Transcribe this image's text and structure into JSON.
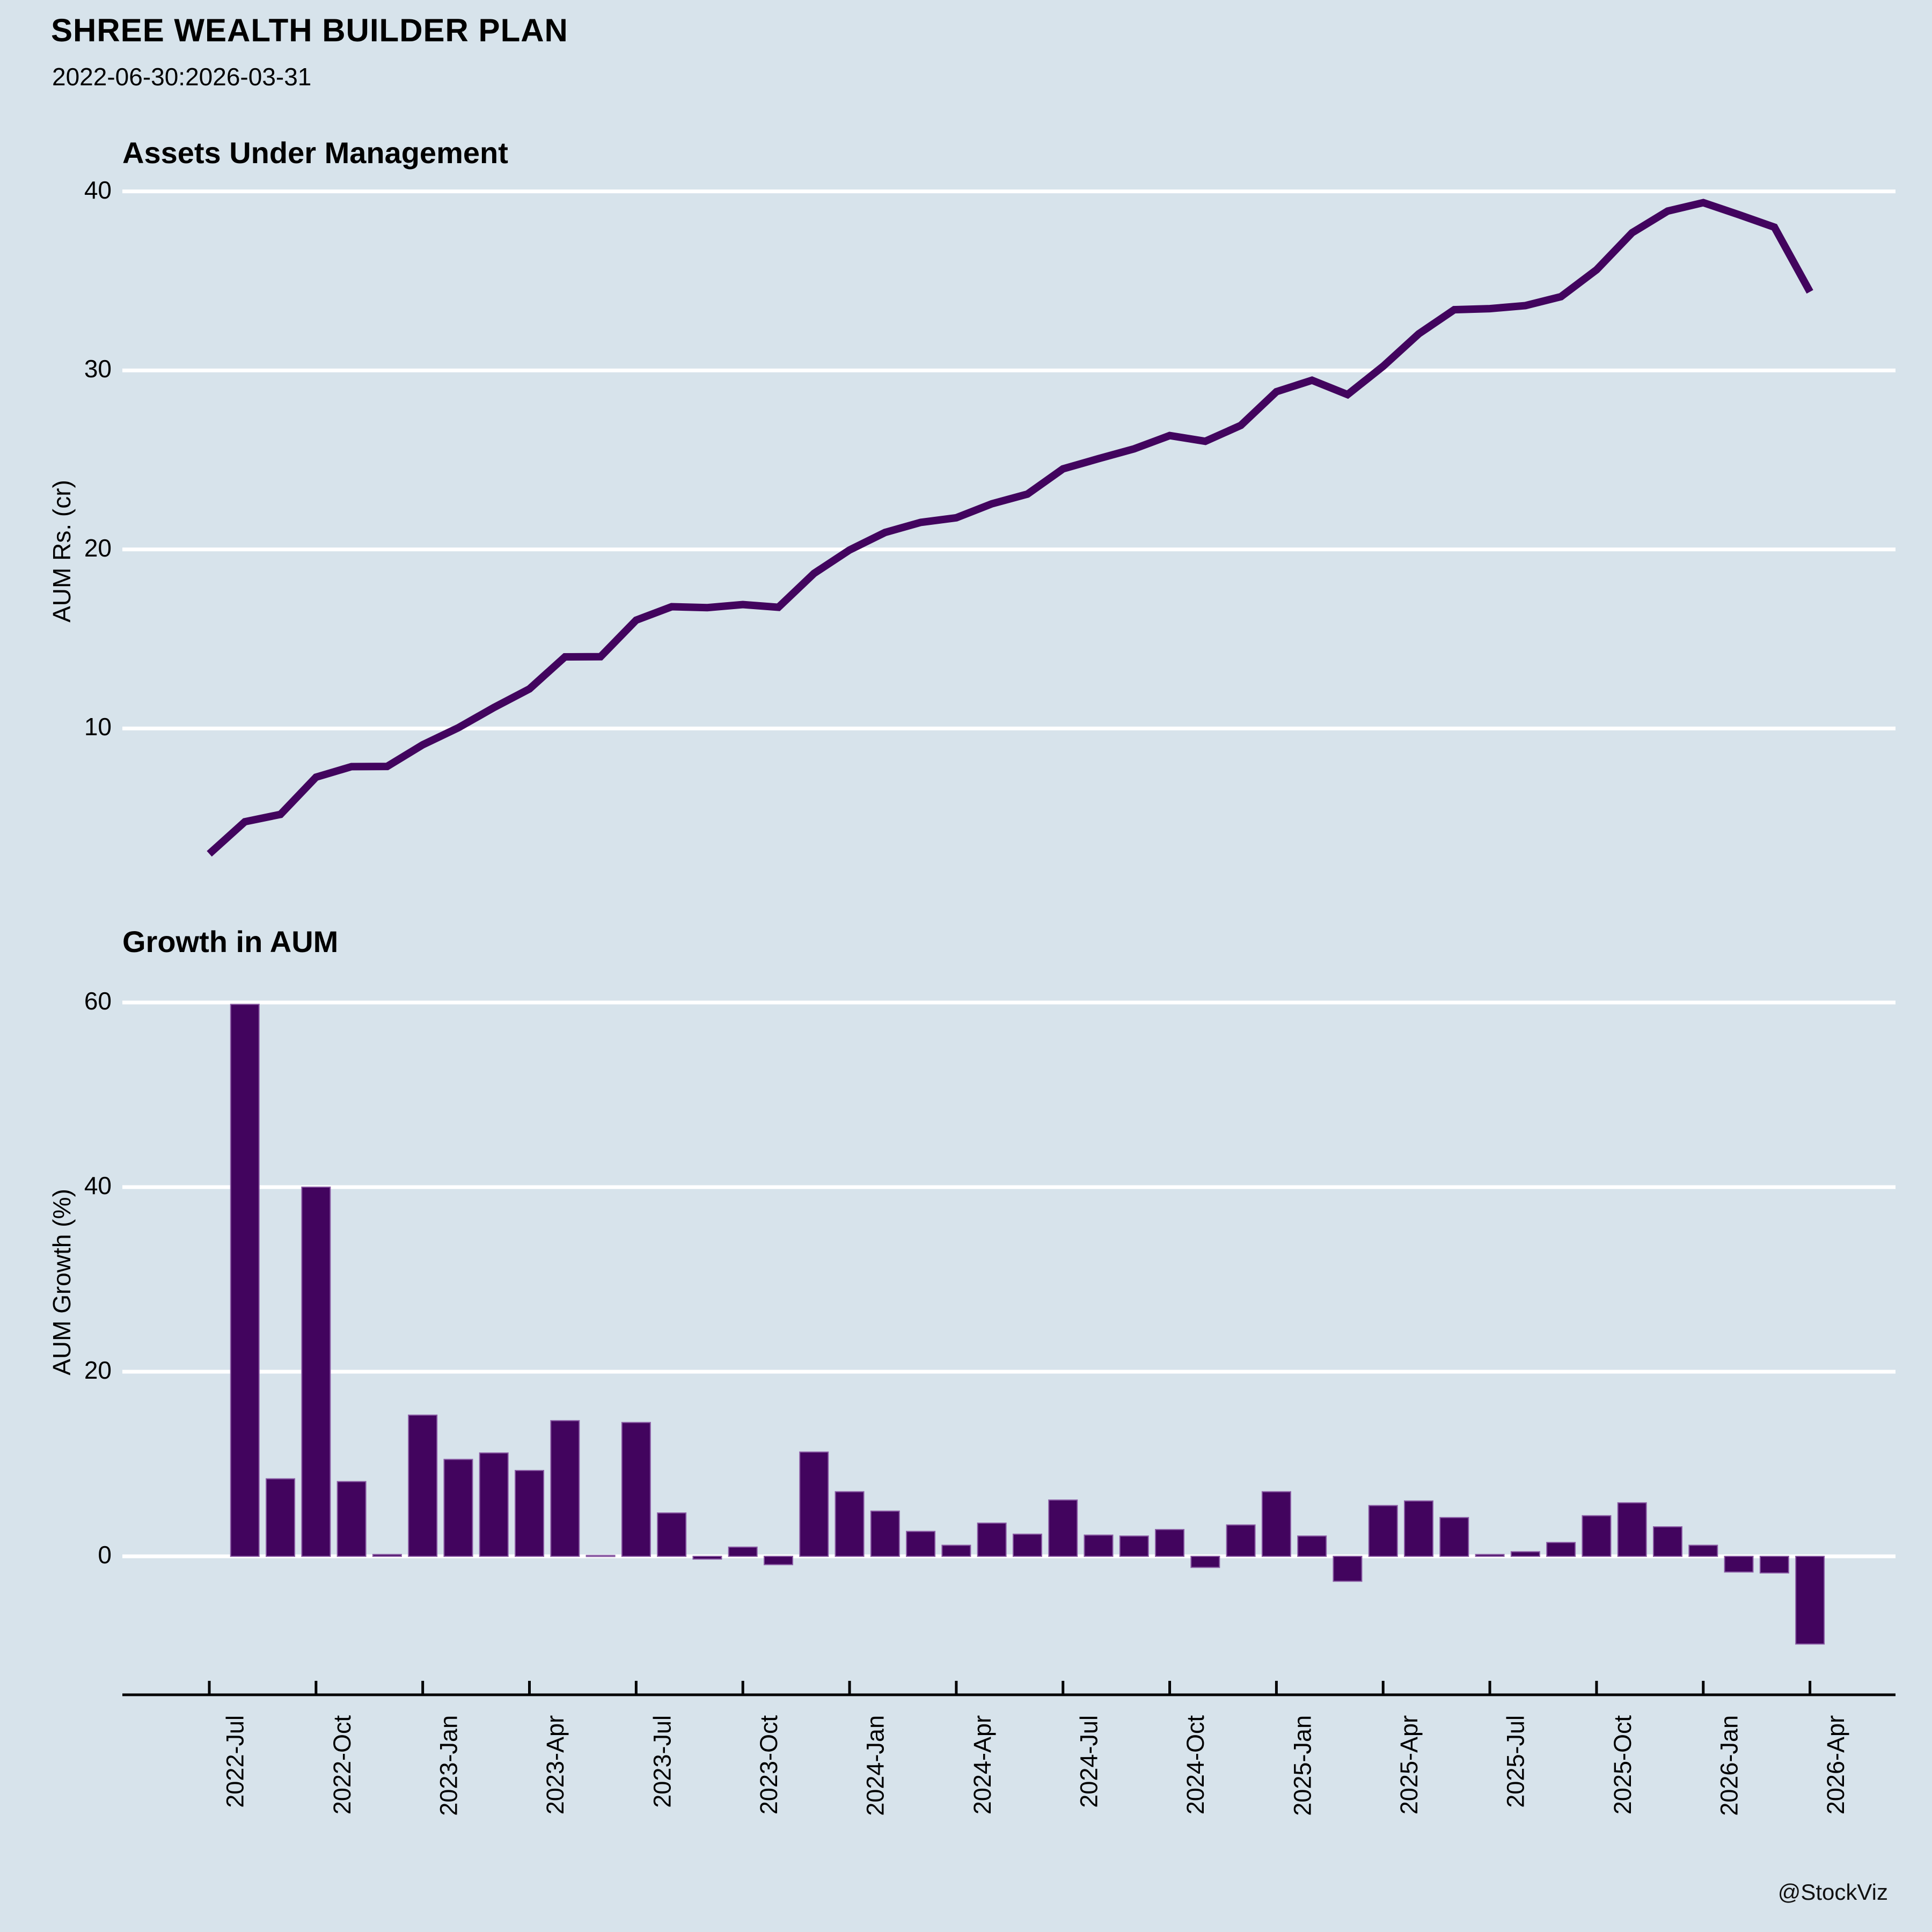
{
  "header": {
    "title": "SHREE WEALTH BUILDER PLAN",
    "subtitle": "2022-06-30:2026-03-31"
  },
  "footer": {
    "watermark": "@StockViz"
  },
  "colors": {
    "background": "#d7e3eb",
    "series": "#42045e",
    "bar_edge": "#8a5ba4",
    "gridline": "#ffffff",
    "axis": "#000000",
    "text": "#000000"
  },
  "chart_data": [
    {
      "type": "line",
      "title": "Assets Under Management",
      "ylabel": "AUM Rs. (cr)",
      "yticks": [
        40,
        30,
        20,
        10
      ],
      "ylim": [
        0,
        42
      ],
      "grid": "horizontal-white",
      "legend": "none",
      "x_months": [
        "2022-06",
        "2022-07",
        "2022-08",
        "2022-09",
        "2022-10",
        "2022-11",
        "2022-12",
        "2023-01",
        "2023-02",
        "2023-03",
        "2023-04",
        "2023-05",
        "2023-06",
        "2023-07",
        "2023-08",
        "2023-09",
        "2023-10",
        "2023-11",
        "2023-12",
        "2024-01",
        "2024-02",
        "2024-03",
        "2024-04",
        "2024-05",
        "2024-06",
        "2024-07",
        "2024-08",
        "2024-09",
        "2024-10",
        "2024-11",
        "2024-12",
        "2025-01",
        "2025-02",
        "2025-03",
        "2025-04",
        "2025-05",
        "2025-06",
        "2025-07",
        "2025-08",
        "2025-09",
        "2025-10",
        "2025-11",
        "2025-12",
        "2026-01",
        "2026-02",
        "2026-03"
      ],
      "values": [
        3.0,
        4.79,
        5.2,
        7.28,
        7.87,
        7.88,
        9.09,
        10.04,
        11.17,
        12.21,
        14.0,
        14.01,
        16.05,
        16.8,
        16.75,
        16.92,
        16.77,
        18.66,
        19.97,
        20.95,
        21.51,
        21.77,
        22.55,
        23.09,
        24.5,
        25.07,
        25.62,
        26.36,
        26.04,
        26.93,
        28.81,
        29.45,
        28.65,
        30.23,
        32.04,
        33.39,
        33.45,
        33.62,
        34.12,
        35.62,
        37.69,
        38.9,
        39.37,
        38.7,
        38.0,
        34.39
      ]
    },
    {
      "type": "bar",
      "title": "Growth in AUM",
      "ylabel": "AUM Growth (%)",
      "yticks": [
        60,
        40,
        20,
        0
      ],
      "ylim": [
        -13,
        63
      ],
      "grid": "horizontal-white",
      "legend": "none",
      "xticklabels": [
        "2022-Jul",
        "2022-Oct",
        "2023-Jan",
        "2023-Apr",
        "2023-Jul",
        "2023-Oct",
        "2024-Jan",
        "2024-Apr",
        "2024-Jul",
        "2024-Oct",
        "2025-Jan",
        "2025-Apr",
        "2025-Jul",
        "2025-Oct",
        "2026-Jan",
        "2026-Apr"
      ],
      "x_months": [
        "2022-07",
        "2022-08",
        "2022-09",
        "2022-10",
        "2022-11",
        "2022-12",
        "2023-01",
        "2023-02",
        "2023-03",
        "2023-04",
        "2023-05",
        "2023-06",
        "2023-07",
        "2023-08",
        "2023-09",
        "2023-10",
        "2023-11",
        "2023-12",
        "2024-01",
        "2024-02",
        "2024-03",
        "2024-04",
        "2024-05",
        "2024-06",
        "2024-07",
        "2024-08",
        "2024-09",
        "2024-10",
        "2024-11",
        "2024-12",
        "2025-01",
        "2025-02",
        "2025-03",
        "2025-04",
        "2025-05",
        "2025-06",
        "2025-07",
        "2025-08",
        "2025-09",
        "2025-10",
        "2025-11",
        "2025-12",
        "2026-01",
        "2026-02",
        "2026-03"
      ],
      "values": [
        59.8,
        8.4,
        40.0,
        8.1,
        0.2,
        15.3,
        10.5,
        11.2,
        9.3,
        14.7,
        0.1,
        14.5,
        4.7,
        -0.3,
        1.0,
        -0.9,
        11.3,
        7.0,
        4.9,
        2.7,
        1.2,
        3.6,
        2.4,
        6.1,
        2.3,
        2.2,
        2.9,
        -1.2,
        3.4,
        7.0,
        2.2,
        -2.7,
        5.5,
        6.0,
        4.2,
        0.2,
        0.5,
        1.5,
        4.4,
        5.8,
        3.2,
        1.2,
        -1.7,
        -1.8,
        -9.5
      ]
    }
  ]
}
